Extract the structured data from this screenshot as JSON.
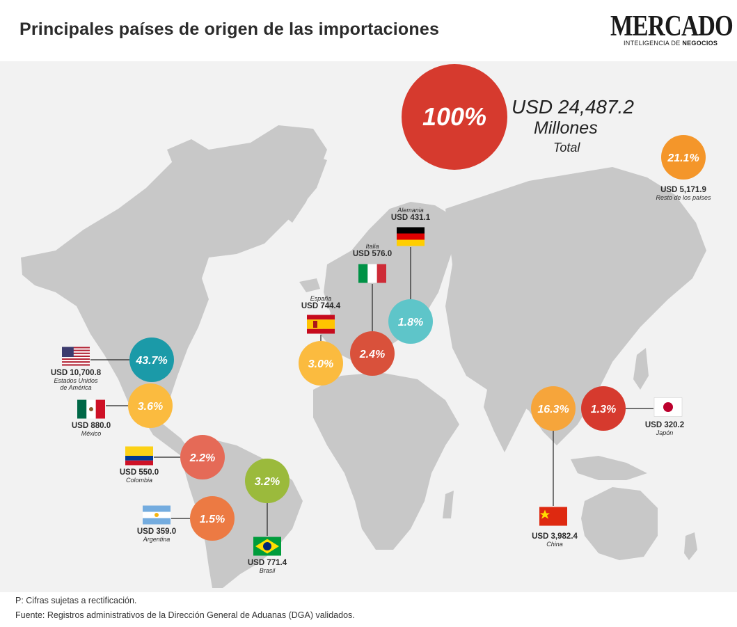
{
  "title": "Principales países de origen de las importaciones",
  "logo": {
    "name": "MERCADO",
    "tagline_prefix": "INTELIGENCIA DE ",
    "tagline_bold": "NEGOCIOS"
  },
  "total": {
    "percent": "100%",
    "amount": "USD 24,487.2",
    "unit": "Millones",
    "label": "Total"
  },
  "footer": {
    "note": "P: Cifras sujetas a rectificación.",
    "source": "Fuente: Registros administrativos de la Dirección General de Aduanas (DGA) validados."
  },
  "colors": {
    "map_land": "#c8c8c8",
    "map_bg": "#f2f2f2",
    "total_bubble": "#d63a2e"
  },
  "chart_data": {
    "type": "bubble-map",
    "title": "Principales países de origen de las importaciones",
    "total": {
      "value": 24487.2,
      "unit": "USD Millones"
    },
    "items": [
      {
        "id": "usa",
        "country": "Estados Unidos de América",
        "country_line1": "Estados Unidos",
        "country_line2": "de América",
        "value": 10700.8,
        "value_label": "USD 10,700.8",
        "share": 43.7,
        "share_label": "43.7%",
        "color": "#1b9aa8",
        "flag": "usa"
      },
      {
        "id": "china",
        "country": "China",
        "value": 3982.4,
        "value_label": "USD 3,982.4",
        "share": 16.3,
        "share_label": "16.3%",
        "color": "#f6a53b",
        "flag": "china"
      },
      {
        "id": "mexico",
        "country": "México",
        "value": 880.0,
        "value_label": "USD 880.0",
        "share": 3.6,
        "share_label": "3.6%",
        "color": "#fbbb3f",
        "flag": "mexico"
      },
      {
        "id": "brasil",
        "country": "Brasil",
        "value": 771.4,
        "value_label": "USD 771.4",
        "share": 3.2,
        "share_label": "3.2%",
        "color": "#9bba3c",
        "flag": "brasil"
      },
      {
        "id": "espana",
        "country": "España",
        "value": 744.4,
        "value_label": "USD 744.4",
        "share": 3.0,
        "share_label": "3.0%",
        "color": "#fbbb3f",
        "flag": "espana"
      },
      {
        "id": "italia",
        "country": "Italia",
        "value": 576.0,
        "value_label": "USD 576.0",
        "share": 2.4,
        "share_label": "2.4%",
        "color": "#d9513b",
        "flag": "italia"
      },
      {
        "id": "colombia",
        "country": "Colombia",
        "value": 550.0,
        "value_label": "USD 550.0",
        "share": 2.2,
        "share_label": "2.2%",
        "color": "#e56a57",
        "flag": "colombia"
      },
      {
        "id": "alemania",
        "country": "Alemania",
        "value": 431.1,
        "value_label": "USD 431.1",
        "share": 1.8,
        "share_label": "1.8%",
        "color": "#5ec5c9",
        "flag": "alemania"
      },
      {
        "id": "argentina",
        "country": "Argentina",
        "value": 359.0,
        "value_label": "USD 359.0",
        "share": 1.5,
        "share_label": "1.5%",
        "color": "#ec7a43",
        "flag": "argentina"
      },
      {
        "id": "japon",
        "country": "Japón",
        "value": 320.2,
        "value_label": "USD 320.2",
        "share": 1.3,
        "share_label": "1.3%",
        "color": "#d63a2e",
        "flag": "japon"
      },
      {
        "id": "resto",
        "country": "Resto de los países",
        "value": 5171.9,
        "value_label": "USD 5,171.9",
        "share": 21.1,
        "share_label": "21.1%",
        "color": "#f4962a",
        "flag": ""
      }
    ]
  }
}
